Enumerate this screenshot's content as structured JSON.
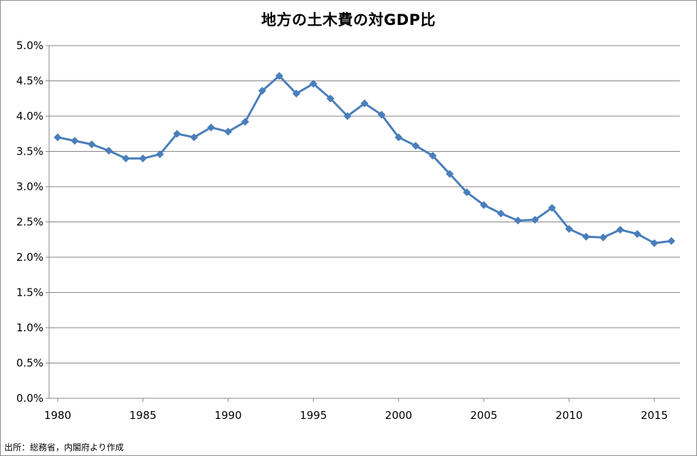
{
  "chart_data": {
    "type": "line",
    "title": "地方の土木費の対GDP比",
    "xlabel": "",
    "ylabel": "",
    "x_ticks": [
      "1980",
      "1985",
      "1990",
      "1995",
      "2000",
      "2005",
      "2010",
      "2015"
    ],
    "y_ticks": [
      "0.0%",
      "0.5%",
      "1.0%",
      "1.5%",
      "2.0%",
      "2.5%",
      "3.0%",
      "3.5%",
      "4.0%",
      "4.5%",
      "5.0%"
    ],
    "xlim": [
      1980,
      2016
    ],
    "ylim": [
      0,
      5
    ],
    "grid": true,
    "legend": "none",
    "series": [
      {
        "color": "#4a7ebb",
        "marker": "diamond",
        "x": [
          1980,
          1981,
          1982,
          1983,
          1984,
          1985,
          1986,
          1987,
          1988,
          1989,
          1990,
          1991,
          1992,
          1993,
          1994,
          1995,
          1996,
          1997,
          1998,
          1999,
          2000,
          2001,
          2002,
          2003,
          2004,
          2005,
          2006,
          2007,
          2008,
          2009,
          2010,
          2011,
          2012,
          2013,
          2014,
          2015,
          2016
        ],
        "values": [
          3.7,
          3.65,
          3.6,
          3.51,
          3.4,
          3.4,
          3.46,
          3.75,
          3.7,
          3.84,
          3.78,
          3.92,
          4.36,
          4.57,
          4.32,
          4.46,
          4.25,
          4.0,
          4.18,
          4.02,
          3.7,
          3.58,
          3.44,
          3.18,
          2.92,
          2.74,
          2.62,
          2.52,
          2.53,
          2.7,
          2.4,
          2.29,
          2.28,
          2.39,
          2.33,
          2.2,
          2.23
        ]
      }
    ]
  },
  "source_note": "出所：総務省，内閣府より作成"
}
